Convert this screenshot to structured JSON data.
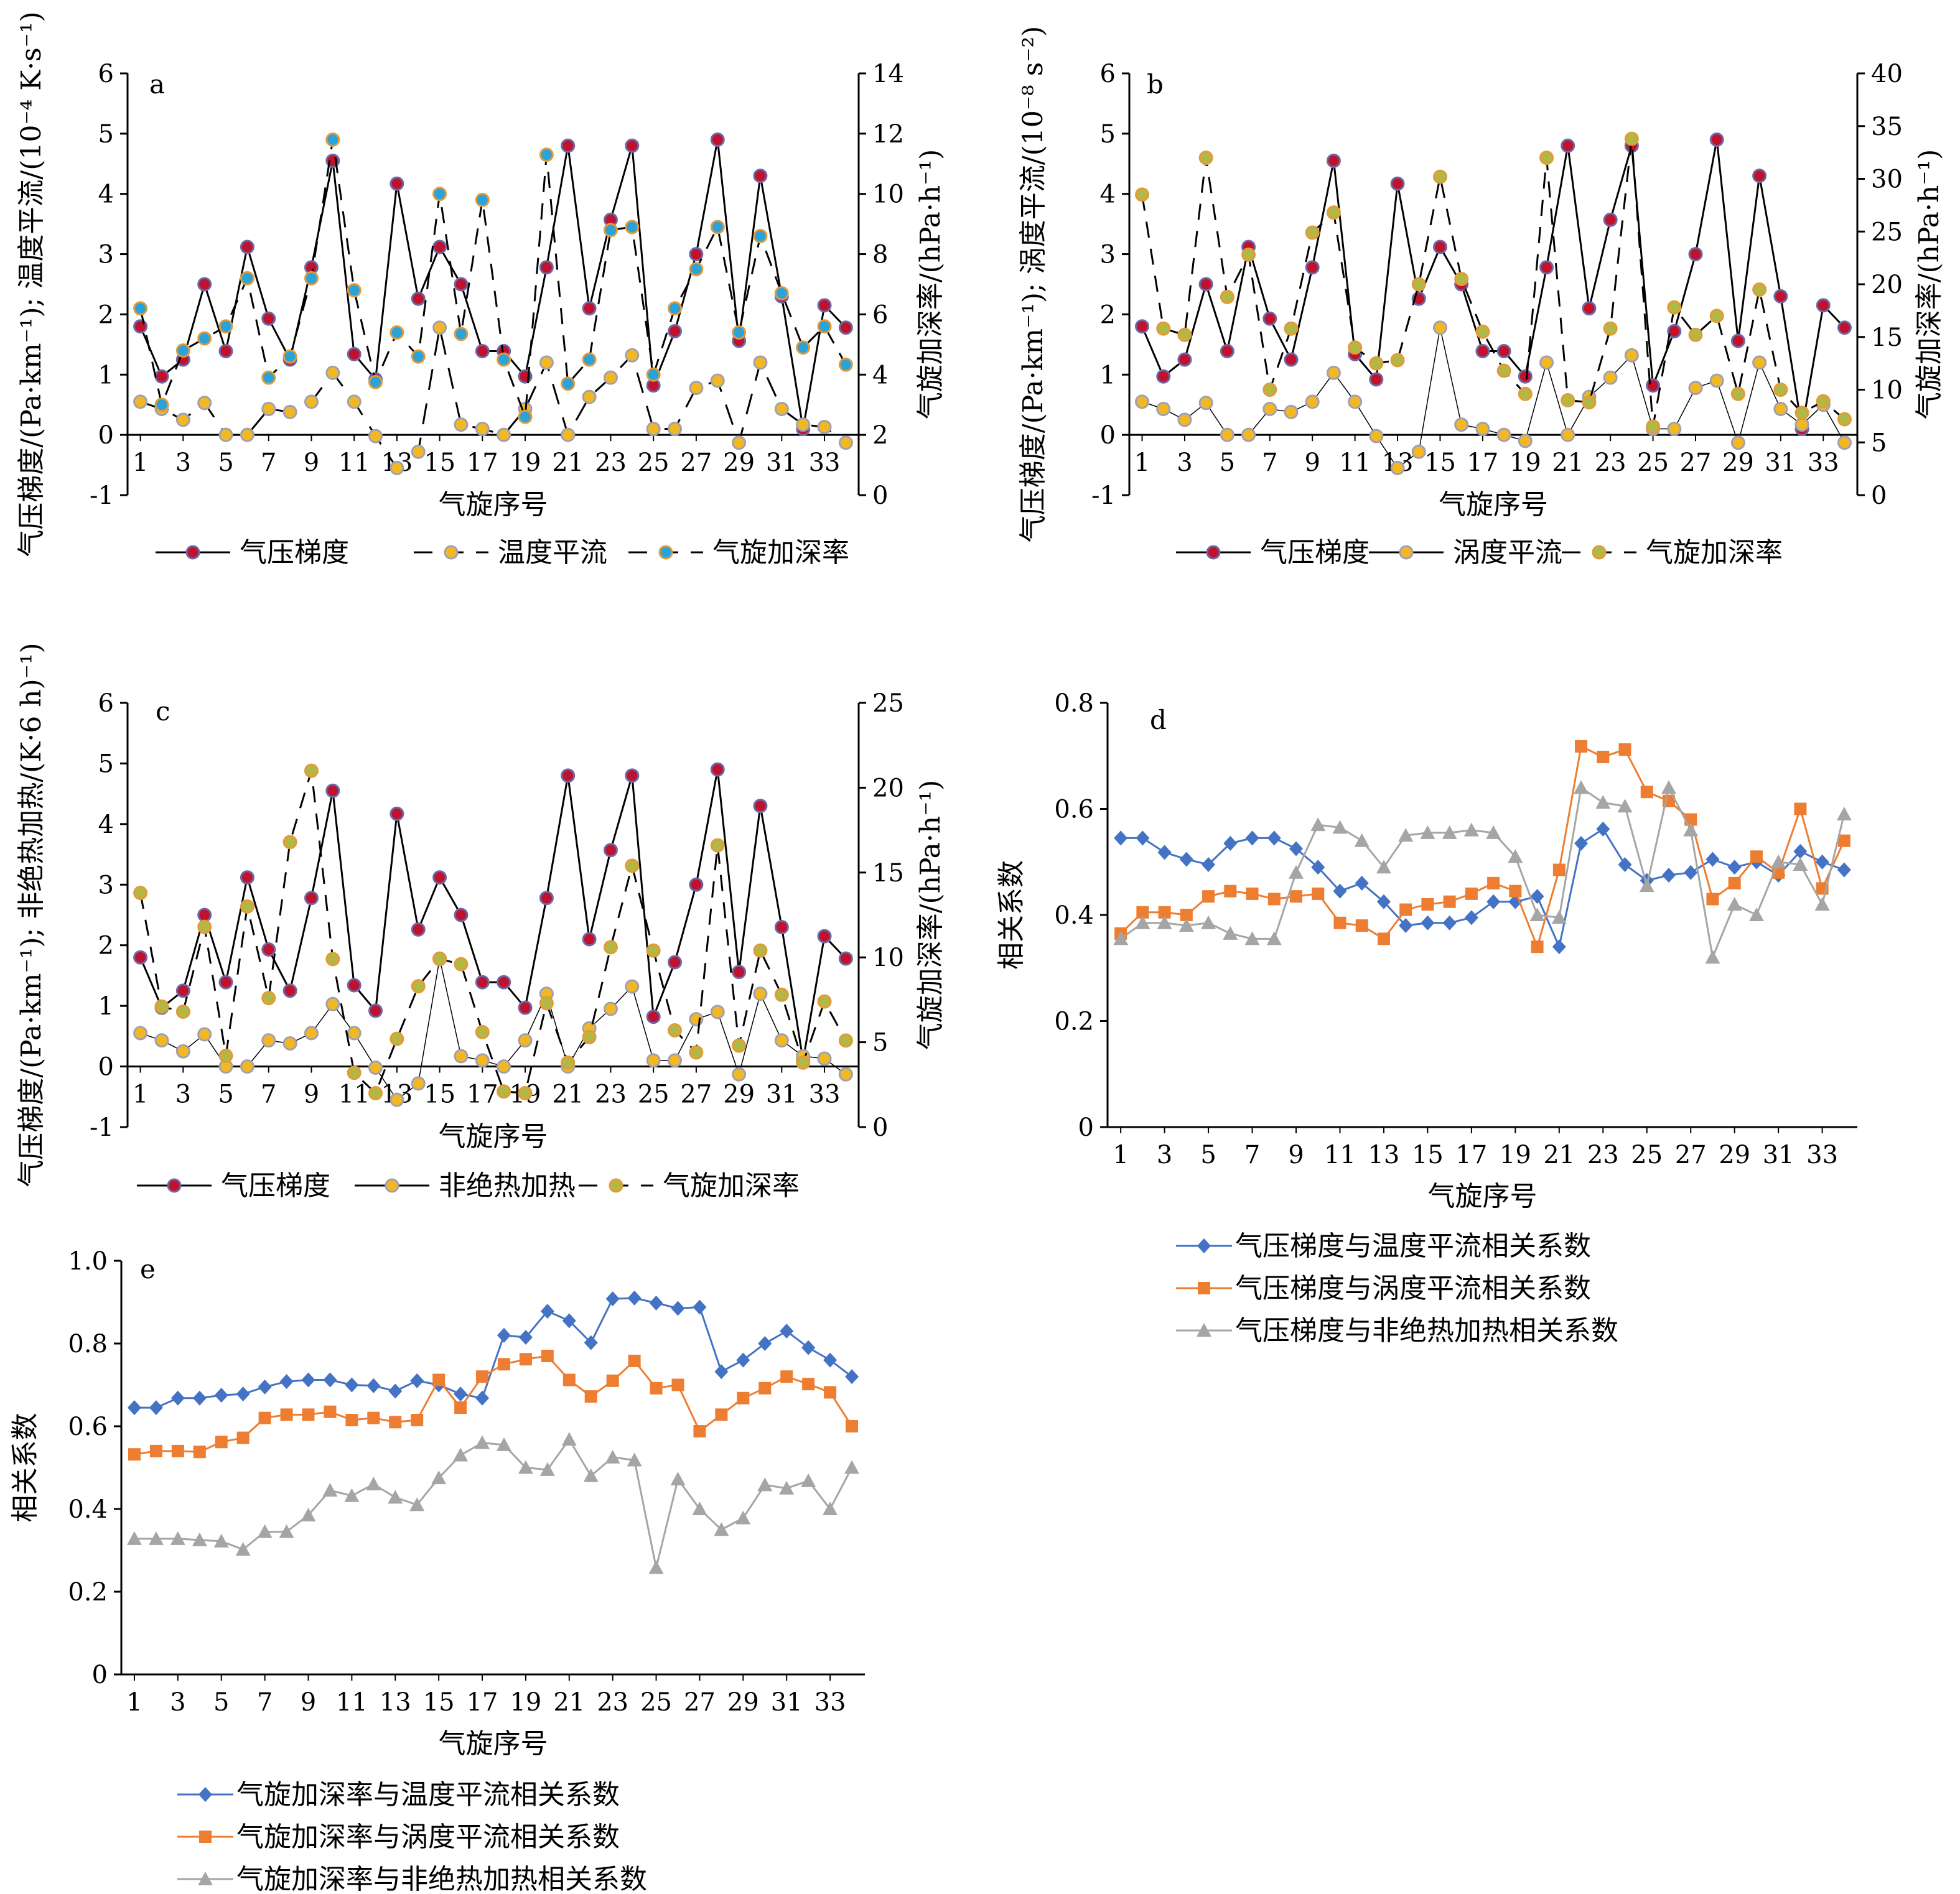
{
  "chart_data": [
    {
      "id": "a",
      "type": "line",
      "panel_label": "a",
      "xlabel": "气旋序号",
      "ylabel": "气压梯度/(Pa·km⁻¹); 温度平流/(10⁻⁴ K·s⁻¹)",
      "ylabel_right": "气旋加深率/(hPa·h⁻¹)",
      "xticks": [
        "1",
        "3",
        "5",
        "7",
        "9",
        "11",
        "13",
        "15",
        "17",
        "19",
        "21",
        "23",
        "25",
        "27",
        "29",
        "31",
        "33"
      ],
      "ylim": [
        -1,
        6
      ],
      "yticks": [
        -1,
        0,
        1,
        2,
        3,
        4,
        5,
        6
      ],
      "ylim_right": [
        0,
        14
      ],
      "yticks_right": [
        0,
        2,
        4,
        6,
        8,
        10,
        12,
        14
      ],
      "x": [
        1,
        2,
        3,
        4,
        5,
        6,
        7,
        8,
        9,
        10,
        11,
        12,
        13,
        14,
        15,
        16,
        17,
        18,
        19,
        20,
        21,
        22,
        23,
        24,
        25,
        26,
        27,
        28,
        29,
        30,
        31,
        32,
        33,
        34
      ],
      "series": [
        {
          "name": "气压梯度",
          "axis": "left",
          "style": "solid",
          "line_color": "#000000",
          "marker_fill": "#c0122c",
          "marker_stroke": "#6a6aa8",
          "values": [
            1.8,
            0.97,
            1.25,
            2.5,
            1.39,
            3.12,
            1.93,
            1.25,
            2.78,
            4.55,
            1.34,
            0.92,
            4.17,
            2.26,
            3.12,
            2.5,
            1.39,
            1.39,
            0.97,
            2.78,
            4.8,
            2.1,
            3.57,
            4.8,
            0.82,
            1.72,
            3.0,
            4.9,
            1.56,
            4.3,
            2.3,
            0.1,
            2.15,
            1.78
          ]
        },
        {
          "name": "温度平流",
          "axis": "left",
          "style": "longdash",
          "line_color": "#000000",
          "marker_fill": "#f2b824",
          "marker_stroke": "#a0a0b4",
          "values": [
            0.55,
            0.43,
            0.25,
            0.53,
            0.0,
            0.0,
            0.43,
            0.38,
            0.55,
            1.03,
            0.55,
            -0.02,
            -0.55,
            -0.28,
            1.78,
            0.17,
            0.1,
            0.0,
            0.43,
            1.2,
            0.0,
            0.63,
            0.95,
            1.32,
            0.1,
            0.1,
            0.78,
            0.9,
            -0.13,
            1.2,
            0.43,
            0.17,
            0.13,
            -0.13
          ]
        },
        {
          "name": "气旋加深率",
          "axis": "right",
          "style": "dash",
          "line_color": "#000000",
          "marker_fill": "#29a3d9",
          "marker_stroke": "#e39a3a",
          "values": [
            6.2,
            3.0,
            4.8,
            5.2,
            5.6,
            7.2,
            3.9,
            4.6,
            7.2,
            11.8,
            6.8,
            3.75,
            5.4,
            4.6,
            10.0,
            5.35,
            9.8,
            4.5,
            2.6,
            11.3,
            3.7,
            4.5,
            8.8,
            8.9,
            4.0,
            6.2,
            7.5,
            8.9,
            5.4,
            8.6,
            6.7,
            4.9,
            5.6,
            4.33
          ]
        }
      ]
    },
    {
      "id": "b",
      "type": "line",
      "panel_label": "b",
      "xlabel": "气旋序号",
      "ylabel": "气压梯度/(Pa·km⁻¹); 涡度平流/(10⁻⁸ s⁻²)",
      "ylabel_right": "气旋加深率/(hPa·h⁻¹)",
      "xticks": [
        "1",
        "3",
        "5",
        "7",
        "9",
        "11",
        "13",
        "15",
        "17",
        "19",
        "21",
        "23",
        "25",
        "27",
        "29",
        "31",
        "33"
      ],
      "ylim": [
        -1,
        6
      ],
      "yticks": [
        -1,
        0,
        1,
        2,
        3,
        4,
        5,
        6
      ],
      "ylim_right": [
        0,
        40
      ],
      "yticks_right": [
        0,
        5,
        10,
        15,
        20,
        25,
        30,
        35,
        40
      ],
      "x": [
        1,
        2,
        3,
        4,
        5,
        6,
        7,
        8,
        9,
        10,
        11,
        12,
        13,
        14,
        15,
        16,
        17,
        18,
        19,
        20,
        21,
        22,
        23,
        24,
        25,
        26,
        27,
        28,
        29,
        30,
        31,
        32,
        33,
        34
      ],
      "series": [
        {
          "name": "气压梯度",
          "axis": "left",
          "style": "solid",
          "line_color": "#000000",
          "marker_fill": "#c0122c",
          "marker_stroke": "#6a6aa8",
          "values": [
            1.8,
            0.97,
            1.25,
            2.5,
            1.39,
            3.12,
            1.93,
            1.25,
            2.78,
            4.55,
            1.34,
            0.92,
            4.17,
            2.26,
            3.12,
            2.5,
            1.39,
            1.39,
            0.97,
            2.78,
            4.8,
            2.1,
            3.57,
            4.8,
            0.82,
            1.72,
            3.0,
            4.9,
            1.56,
            4.3,
            2.3,
            0.1,
            2.15,
            1.78
          ]
        },
        {
          "name": "涡度平流",
          "axis": "left",
          "style": "solid-light",
          "line_color": "#000000",
          "marker_fill": "#f2b824",
          "marker_stroke": "#a0a0b4",
          "values": [
            0.55,
            0.43,
            0.25,
            0.53,
            0.0,
            0.0,
            0.43,
            0.38,
            0.55,
            1.03,
            0.55,
            -0.02,
            -0.55,
            -0.28,
            1.78,
            0.17,
            0.1,
            0.0,
            -0.1,
            1.2,
            0.0,
            0.63,
            0.95,
            1.32,
            0.1,
            0.1,
            0.78,
            0.9,
            -0.13,
            1.2,
            0.43,
            0.17,
            0.5,
            -0.13
          ]
        },
        {
          "name": "气旋加深率",
          "axis": "right",
          "style": "dash",
          "line_color": "#000000",
          "marker_fill": "#b3b845",
          "marker_stroke": "#e39a3a",
          "values": [
            28.5,
            15.8,
            15.2,
            32.0,
            18.8,
            22.8,
            10.0,
            15.8,
            24.9,
            26.8,
            14.0,
            12.5,
            12.8,
            20.0,
            30.2,
            20.5,
            15.5,
            11.8,
            9.6,
            32.0,
            9.0,
            8.8,
            15.8,
            33.8,
            6.5,
            17.8,
            15.2,
            17.0,
            9.6,
            19.5,
            10.0,
            7.8,
            8.9,
            7.2
          ]
        }
      ]
    },
    {
      "id": "c",
      "type": "line",
      "panel_label": "c",
      "xlabel": "气旋序号",
      "ylabel": "气压梯度/(Pa·km⁻¹); 非绝热加热/(K·6 h)⁻¹)",
      "ylabel_right": "气旋加深率/(hPa·h⁻¹)",
      "xticks": [
        "1",
        "3",
        "5",
        "7",
        "9",
        "11",
        "13",
        "15",
        "17",
        "19",
        "21",
        "23",
        "25",
        "27",
        "29",
        "31",
        "33"
      ],
      "ylim": [
        -1,
        6
      ],
      "yticks": [
        -1,
        0,
        1,
        2,
        3,
        4,
        5,
        6
      ],
      "ylim_right": [
        0,
        25
      ],
      "yticks_right": [
        0,
        5,
        10,
        15,
        20,
        25
      ],
      "x": [
        1,
        2,
        3,
        4,
        5,
        6,
        7,
        8,
        9,
        10,
        11,
        12,
        13,
        14,
        15,
        16,
        17,
        18,
        19,
        20,
        21,
        22,
        23,
        24,
        25,
        26,
        27,
        28,
        29,
        30,
        31,
        32,
        33,
        34
      ],
      "series": [
        {
          "name": "气压梯度",
          "axis": "left",
          "style": "solid",
          "line_color": "#000000",
          "marker_fill": "#c0122c",
          "marker_stroke": "#6a6aa8",
          "values": [
            1.8,
            0.97,
            1.25,
            2.5,
            1.39,
            3.12,
            1.93,
            1.25,
            2.78,
            4.55,
            1.34,
            0.92,
            4.17,
            2.26,
            3.12,
            2.5,
            1.39,
            1.39,
            0.97,
            2.78,
            4.8,
            2.1,
            3.57,
            4.8,
            0.82,
            1.72,
            3.0,
            4.9,
            1.56,
            4.3,
            2.3,
            0.1,
            2.15,
            1.78
          ]
        },
        {
          "name": "非绝热加热",
          "axis": "left",
          "style": "solid-light",
          "line_color": "#000000",
          "marker_fill": "#f2b824",
          "marker_stroke": "#a0a0b4",
          "values": [
            0.55,
            0.43,
            0.25,
            0.53,
            0.0,
            0.0,
            0.43,
            0.38,
            0.55,
            1.03,
            0.55,
            -0.02,
            -0.55,
            -0.28,
            1.78,
            0.17,
            0.1,
            0.0,
            0.43,
            1.2,
            0.0,
            0.63,
            0.95,
            1.32,
            0.1,
            0.1,
            0.78,
            0.9,
            -0.13,
            1.2,
            0.43,
            0.17,
            0.13,
            -0.13
          ]
        },
        {
          "name": "气旋加深率",
          "axis": "right",
          "style": "dash",
          "line_color": "#000000",
          "marker_fill": "#b3b845",
          "marker_stroke": "#e39a3a",
          "values": [
            13.8,
            7.1,
            6.8,
            11.8,
            4.2,
            13.0,
            7.6,
            16.8,
            21.0,
            9.9,
            3.2,
            2.0,
            5.2,
            8.3,
            9.9,
            9.6,
            5.6,
            2.1,
            2.0,
            7.3,
            3.8,
            5.3,
            10.6,
            15.4,
            10.4,
            5.7,
            4.4,
            16.6,
            4.8,
            10.4,
            7.8,
            3.8,
            7.4,
            5.1
          ]
        }
      ]
    },
    {
      "id": "d",
      "type": "line",
      "panel_label": "d",
      "xlabel": "气旋序号",
      "ylabel": "相关系数",
      "xticks": [
        "1",
        "3",
        "5",
        "7",
        "9",
        "11",
        "13",
        "15",
        "17",
        "19",
        "21",
        "23",
        "25",
        "27",
        "29",
        "31",
        "33"
      ],
      "ylim": [
        0,
        0.8
      ],
      "yticks": [
        0,
        0.2,
        0.4,
        0.6,
        0.8
      ],
      "x": [
        1,
        2,
        3,
        4,
        5,
        6,
        7,
        8,
        9,
        10,
        11,
        12,
        13,
        14,
        15,
        16,
        17,
        18,
        19,
        20,
        21,
        22,
        23,
        24,
        25,
        26,
        27,
        28,
        29,
        30,
        31,
        32,
        33,
        34
      ],
      "series": [
        {
          "name": "气压梯度与温度平流相关系数",
          "marker": "diamond",
          "color": "#4472c4",
          "values": [
            0.545,
            0.545,
            0.518,
            0.505,
            0.495,
            0.535,
            0.545,
            0.545,
            0.525,
            0.49,
            0.445,
            0.46,
            0.425,
            0.38,
            0.385,
            0.385,
            0.395,
            0.425,
            0.425,
            0.435,
            0.34,
            0.535,
            0.562,
            0.495,
            0.465,
            0.475,
            0.48,
            0.505,
            0.49,
            0.5,
            0.475,
            0.52,
            0.5,
            0.485
          ]
        },
        {
          "name": "气压梯度与涡度平流相关系数",
          "marker": "square",
          "color": "#ed7d31",
          "values": [
            0.365,
            0.405,
            0.405,
            0.4,
            0.435,
            0.445,
            0.44,
            0.43,
            0.435,
            0.44,
            0.385,
            0.38,
            0.355,
            0.41,
            0.42,
            0.425,
            0.44,
            0.46,
            0.445,
            0.34,
            0.485,
            0.718,
            0.698,
            0.712,
            0.632,
            0.615,
            0.58,
            0.43,
            0.46,
            0.51,
            0.48,
            0.6,
            0.45,
            0.54
          ]
        },
        {
          "name": "气压梯度与非绝热加热相关系数",
          "marker": "triangle",
          "color": "#a5a5a5",
          "values": [
            0.355,
            0.385,
            0.385,
            0.38,
            0.385,
            0.365,
            0.355,
            0.355,
            0.48,
            0.57,
            0.565,
            0.54,
            0.49,
            0.55,
            0.555,
            0.555,
            0.56,
            0.555,
            0.51,
            0.4,
            0.395,
            0.64,
            0.612,
            0.605,
            0.455,
            0.64,
            0.56,
            0.32,
            0.42,
            0.4,
            0.5,
            0.495,
            0.42,
            0.59
          ]
        }
      ]
    },
    {
      "id": "e",
      "type": "line",
      "panel_label": "e",
      "xlabel": "气旋序号",
      "ylabel": "相关系数",
      "xticks": [
        "1",
        "3",
        "5",
        "7",
        "9",
        "11",
        "13",
        "15",
        "17",
        "19",
        "21",
        "23",
        "25",
        "27",
        "29",
        "31",
        "33"
      ],
      "ylim": [
        0,
        1.0
      ],
      "yticks": [
        0,
        0.2,
        0.4,
        0.6,
        0.8,
        1.0
      ],
      "x": [
        1,
        2,
        3,
        4,
        5,
        6,
        7,
        8,
        9,
        10,
        11,
        12,
        13,
        14,
        15,
        16,
        17,
        18,
        19,
        20,
        21,
        22,
        23,
        24,
        25,
        26,
        27,
        28,
        29,
        30,
        31,
        32,
        33,
        34
      ],
      "series": [
        {
          "name": "气旋加深率与温度平流相关系数",
          "marker": "diamond",
          "color": "#4472c4",
          "values": [
            0.645,
            0.645,
            0.668,
            0.668,
            0.675,
            0.678,
            0.695,
            0.708,
            0.712,
            0.712,
            0.7,
            0.698,
            0.685,
            0.71,
            0.7,
            0.678,
            0.668,
            0.82,
            0.815,
            0.878,
            0.855,
            0.802,
            0.908,
            0.91,
            0.898,
            0.885,
            0.888,
            0.732,
            0.76,
            0.8,
            0.83,
            0.79,
            0.76,
            0.72
          ]
        },
        {
          "name": "气旋加深率与涡度平流相关系数",
          "marker": "square",
          "color": "#ed7d31",
          "values": [
            0.532,
            0.54,
            0.54,
            0.538,
            0.562,
            0.572,
            0.62,
            0.628,
            0.628,
            0.635,
            0.615,
            0.62,
            0.61,
            0.615,
            0.712,
            0.645,
            0.72,
            0.75,
            0.762,
            0.77,
            0.712,
            0.672,
            0.71,
            0.758,
            0.692,
            0.7,
            0.588,
            0.628,
            0.668,
            0.692,
            0.72,
            0.702,
            0.682,
            0.6
          ]
        },
        {
          "name": "气旋加深率与非绝热加热相关系数",
          "marker": "triangle",
          "color": "#a5a5a5",
          "values": [
            0.328,
            0.328,
            0.328,
            0.325,
            0.322,
            0.302,
            0.345,
            0.345,
            0.385,
            0.445,
            0.432,
            0.46,
            0.428,
            0.41,
            0.475,
            0.53,
            0.56,
            0.555,
            0.5,
            0.495,
            0.568,
            0.48,
            0.525,
            0.518,
            0.258,
            0.472,
            0.4,
            0.35,
            0.378,
            0.458,
            0.45,
            0.468,
            0.4,
            0.5
          ]
        }
      ]
    }
  ]
}
